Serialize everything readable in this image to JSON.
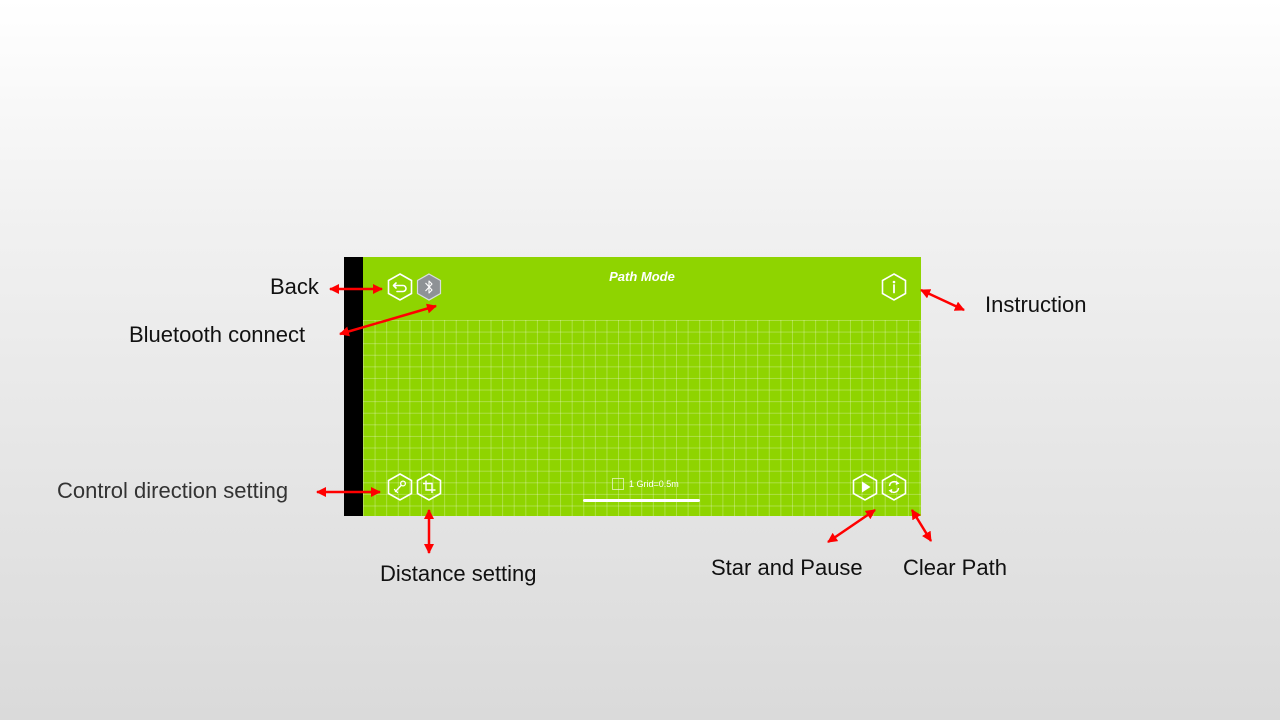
{
  "app": {
    "title": "Path Mode",
    "grid_scale_label": "1 Grid=0.5m",
    "accent_color": "#8fd400"
  },
  "buttons": {
    "back": {
      "icon": "back-arrow-icon"
    },
    "bluetooth": {
      "icon": "bluetooth-icon"
    },
    "instruction": {
      "icon": "info-icon"
    },
    "control_direction": {
      "icon": "joystick-icon"
    },
    "distance": {
      "icon": "crop-icon"
    },
    "start_pause": {
      "icon": "play-icon"
    },
    "clear_path": {
      "icon": "refresh-icon"
    }
  },
  "annotations": {
    "back": "Back",
    "bluetooth": "Bluetooth connect",
    "instruction": "Instruction",
    "control_direction": "Control direction setting",
    "distance": "Distance setting",
    "start_pause": "Star and Pause",
    "clear_path": "Clear Path",
    "arrow_color": "#ff0000"
  }
}
